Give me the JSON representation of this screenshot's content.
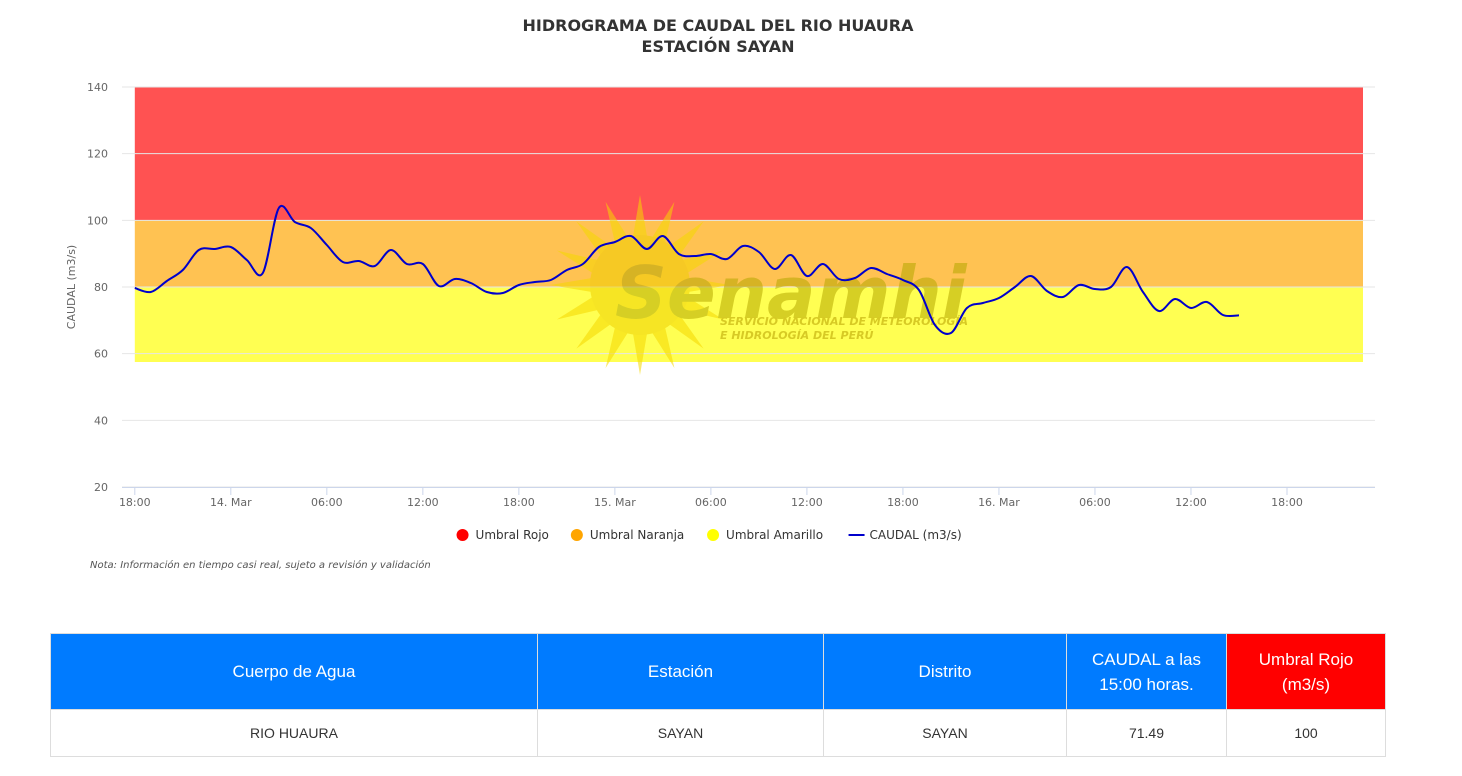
{
  "chart_data": {
    "type": "line",
    "title": "HIDROGRAMA DE CAUDAL DEL RIO HUAURA",
    "subtitle": "ESTACIÓN SAYAN",
    "y_label": "CAUDAL (m3/s)",
    "x": [
      0,
      1,
      2,
      3,
      4,
      5,
      6,
      7,
      8,
      9,
      10,
      11,
      12,
      13,
      14,
      15,
      16,
      17,
      18,
      19,
      20,
      21,
      22,
      23,
      24,
      25,
      26,
      27,
      28,
      29,
      30,
      31,
      32,
      33,
      34,
      35,
      36,
      37,
      38,
      39,
      40,
      41,
      42,
      43,
      44,
      45,
      46,
      47,
      48,
      49,
      50,
      51,
      52,
      53,
      54,
      55,
      56,
      57,
      58,
      59,
      60,
      61,
      62,
      63,
      64,
      65,
      66,
      67,
      68,
      69
    ],
    "series": [
      {
        "name": "CAUDAL (m3/s)",
        "color": "#0000cc",
        "values": [
          79.7,
          78.5,
          81.8,
          85.1,
          91.1,
          91.4,
          92,
          88.1,
          84.2,
          103.7,
          99.5,
          97.7,
          92.6,
          87.5,
          87.8,
          86.3,
          91.1,
          86.9,
          86.9,
          80.3,
          82.4,
          81.2,
          78.5,
          78.2,
          80.6,
          81.5,
          82.1,
          85.1,
          86.9,
          92,
          93.5,
          95.3,
          91.4,
          95.3,
          89.9,
          89.3,
          89.9,
          88.4,
          92.3,
          90.5,
          85.4,
          89.6,
          83.3,
          86.9,
          82.4,
          82.7,
          85.7,
          83.9,
          82.1,
          79.1,
          68.6,
          66.2,
          73.7,
          75.2,
          76.7,
          80,
          83.3,
          78.8,
          77,
          80.6,
          79.4,
          80,
          86,
          78.5,
          72.8,
          76.4,
          73.7,
          75.5,
          71.6,
          71.49
        ]
      }
    ],
    "bands": [
      {
        "name": "Umbral Rojo",
        "color": "#ff0000",
        "from": 100,
        "to": 140
      },
      {
        "name": "Umbral Naranja",
        "color": "#ffa500",
        "from": 80,
        "to": 100
      },
      {
        "name": "Umbral Amarillo",
        "color": "#ffff00",
        "from": 57.5,
        "to": 80
      }
    ],
    "xlim": [
      -0.8,
      77.5
    ],
    "xticks": [
      {
        "value": 0,
        "label": "18:00"
      },
      {
        "value": 6,
        "label": "14. Mar"
      },
      {
        "value": 12,
        "label": "06:00"
      },
      {
        "value": 18,
        "label": "12:00"
      },
      {
        "value": 24,
        "label": "18:00"
      },
      {
        "value": 30,
        "label": "15. Mar"
      },
      {
        "value": 36,
        "label": "06:00"
      },
      {
        "value": 42,
        "label": "12:00"
      },
      {
        "value": 48,
        "label": "18:00"
      },
      {
        "value": 54,
        "label": "16. Mar"
      },
      {
        "value": 60,
        "label": "06:00"
      },
      {
        "value": 66,
        "label": "12:00"
      },
      {
        "value": 72,
        "label": "18:00"
      }
    ],
    "ylim": [
      20,
      140
    ],
    "yticks": [
      20,
      40,
      60,
      80,
      100,
      120,
      140
    ],
    "grid": true,
    "legend": "bottom"
  },
  "watermark": {
    "title": "Senamhi",
    "lines": [
      "SERVICIO NACIONAL DE METEOROLOGÍA",
      "E HIDROLOGÍA DEL PERÚ"
    ]
  },
  "note": "Nota: Información en tiempo casi real, sujeto a revisión y validación",
  "table": {
    "header": [
      "Cuerpo de Agua",
      "Estación",
      "Distrito",
      "CAUDAL a las 15:00 horas.",
      "Umbral Rojo (m3/s)"
    ],
    "header_colors": [
      "#007bff",
      "#007bff",
      "#007bff",
      "#007bff",
      "#ff0000"
    ],
    "rows": [
      [
        "RIO HUAURA",
        "SAYAN",
        "SAYAN",
        "71.49",
        "100"
      ]
    ]
  }
}
